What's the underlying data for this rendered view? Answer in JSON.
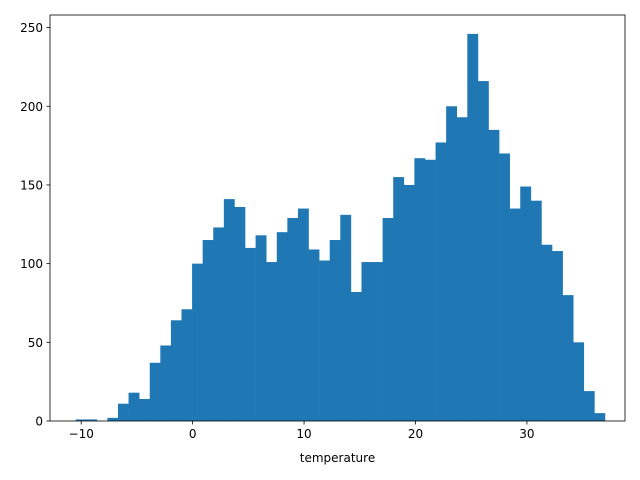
{
  "chart_data": {
    "type": "bar",
    "subtype": "histogram",
    "title": "",
    "xlabel": "temperature",
    "ylabel": "",
    "xlim": [
      -12.8,
      38.8
    ],
    "ylim": [
      0,
      258
    ],
    "xticks": [
      -10,
      0,
      10,
      20,
      30
    ],
    "yticks": [
      0,
      50,
      100,
      150,
      200,
      250
    ],
    "grid": false,
    "legend": "none",
    "bar_color": "#1f77b4",
    "bin_width": 0.95,
    "bin_start": -10.5,
    "values": [
      1,
      1,
      0,
      2,
      11,
      18,
      14,
      37,
      48,
      64,
      71,
      100,
      115,
      123,
      141,
      136,
      110,
      118,
      101,
      120,
      129,
      135,
      109,
      102,
      115,
      131,
      82,
      101,
      101,
      129,
      155,
      150,
      167,
      166,
      177,
      200,
      193,
      246,
      216,
      185,
      170,
      135,
      149,
      140,
      112,
      108,
      80,
      50,
      19,
      5
    ]
  }
}
